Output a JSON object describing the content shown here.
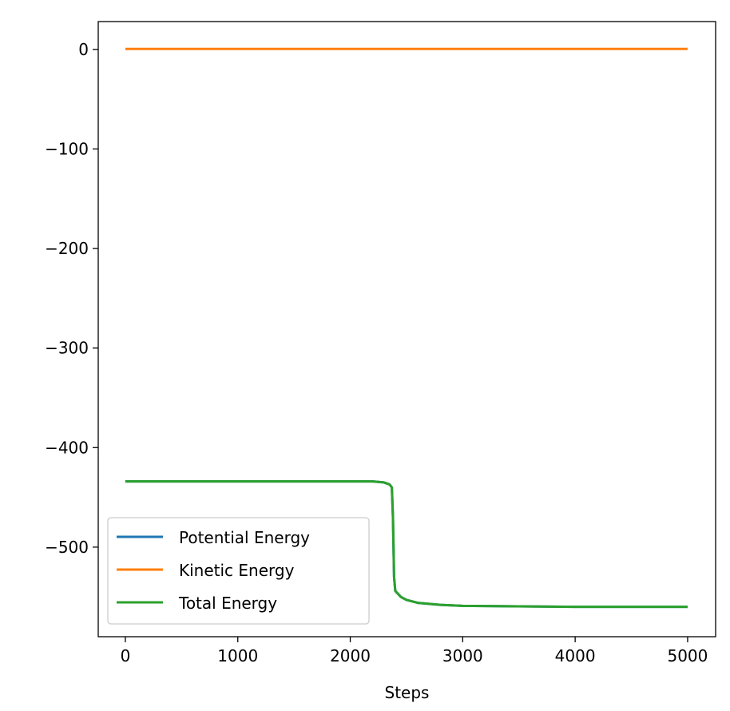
{
  "chart_data": {
    "type": "line",
    "title": "",
    "xlabel": "Steps",
    "ylabel": "",
    "xlim": [
      -241,
      5249
    ],
    "ylim": [
      -590,
      28
    ],
    "xticks": [
      0,
      1000,
      2000,
      3000,
      4000,
      5000
    ],
    "yticks": [
      0,
      -100,
      -200,
      -300,
      -400,
      -500
    ],
    "ytick_labels": [
      "0",
      "−100",
      "−200",
      "−300",
      "−400",
      "−500"
    ],
    "grid": false,
    "legend_position": "lower-left",
    "x": [
      0,
      500,
      1000,
      1500,
      2000,
      2200,
      2300,
      2350,
      2370,
      2380,
      2390,
      2400,
      2450,
      2500,
      2600,
      2800,
      3000,
      4000,
      5000
    ],
    "series": [
      {
        "name": "Potential Energy",
        "color": "#1f77b4",
        "values": [
          -434,
          -434,
          -434,
          -434,
          -434,
          -434,
          -435,
          -437,
          -440,
          -470,
          -530,
          -544,
          -550,
          -553,
          -556,
          -558,
          -559,
          -560,
          -560
        ]
      },
      {
        "name": "Kinetic Energy",
        "color": "#ff7f0e",
        "values": [
          0.5,
          0.5,
          0.5,
          0.5,
          0.5,
          0.5,
          0.5,
          0.5,
          0.5,
          0.5,
          0.5,
          0.5,
          0.5,
          0.5,
          0.5,
          0.5,
          0.5,
          0.5,
          0.5
        ]
      },
      {
        "name": "Total Energy",
        "color": "#2ca02c",
        "values": [
          -434,
          -434,
          -434,
          -434,
          -434,
          -434,
          -435,
          -437,
          -440,
          -470,
          -530,
          -544,
          -550,
          -553,
          -556,
          -558,
          -559,
          -560,
          -560
        ]
      }
    ]
  }
}
